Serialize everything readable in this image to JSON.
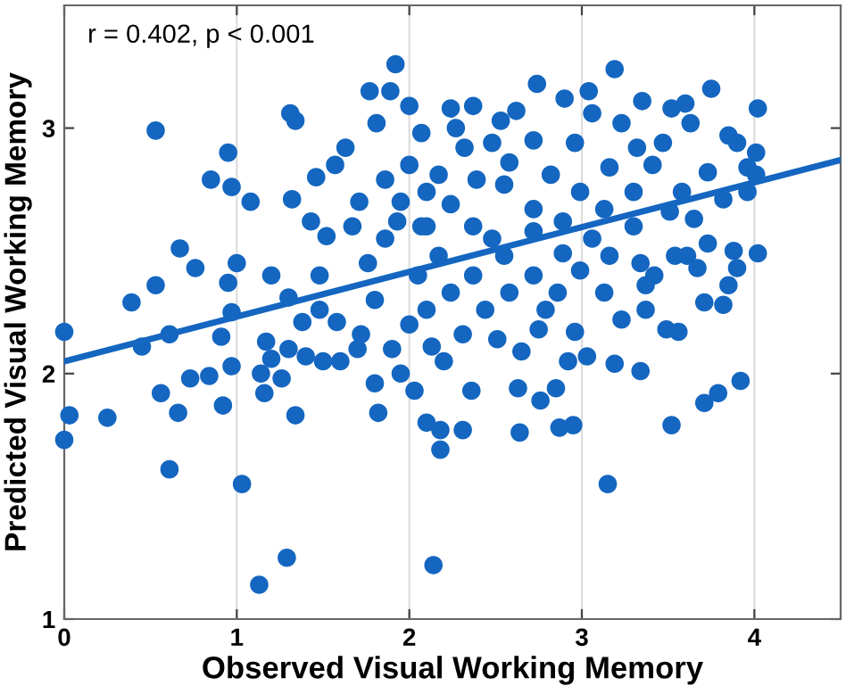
{
  "chart_data": {
    "type": "scatter",
    "xlabel": "Observed Visual Working Memory",
    "ylabel": "Predicted Visual Working Memory",
    "annotations": [
      "r = 0.402, p < 0.001"
    ],
    "xlim": [
      0,
      4.5
    ],
    "ylim": [
      1,
      3.5
    ],
    "xticks": [
      0,
      1,
      2,
      3,
      4
    ],
    "yticks": [
      1,
      2,
      3
    ],
    "grid": "x",
    "legend": false,
    "series": [
      {
        "marker": "circle",
        "color": "#1466c0",
        "x": [
          0,
          0.03,
          0.25,
          0.56,
          0.61,
          0.66,
          0.73,
          0.84,
          0.92,
          0.97,
          1.03,
          1.29,
          1.13,
          1.34,
          1.16,
          1.14,
          1.26,
          1.82,
          1.8,
          2.03,
          2.1,
          2.14,
          2.18,
          2.18,
          2.31,
          2.64,
          2.87,
          2.95,
          3.15,
          3.52,
          3.71,
          3.79,
          3.92,
          3.34,
          3.19,
          2.76,
          2.85,
          2.63,
          2.36,
          3.03,
          2.92,
          0.53,
          0.95,
          0.85,
          0.97,
          1.08,
          1.31,
          1.34,
          0.67,
          0.76,
          0.53,
          0.39,
          1.0,
          0.95,
          1.2,
          0,
          0.97,
          0.91,
          0.61,
          0.45,
          1.32,
          1.43,
          1.46,
          1.57,
          1.63,
          1.77,
          1.89,
          1.92,
          1.81,
          2.0,
          1.71,
          1.52,
          1.48,
          1.3,
          1.48,
          1.67,
          1.76,
          1.86,
          1.93,
          1.38,
          1.58,
          1.72,
          1.17,
          1.86,
          3.19,
          2.74,
          3.04,
          3.75,
          4.02,
          2.9,
          3.35,
          2.24,
          2.37,
          3.6,
          3.52,
          2.62,
          3.06,
          2.27,
          2.53,
          3.23,
          3.63,
          3.85,
          2.07,
          2.32,
          2.48,
          2.72,
          2.96,
          3.32,
          3.47,
          3.9,
          4.01,
          2.58,
          2.17,
          2.39,
          2.82,
          3.16,
          3.41,
          3.73,
          3.96,
          4.01,
          2.1,
          2.55,
          2.99,
          3.3,
          3.58,
          3.82,
          3.96,
          2.24,
          2.72,
          3.13,
          3.51,
          2.07,
          2.37,
          2.89,
          3.3,
          3.65,
          2.48,
          2.72,
          3.06,
          3.73,
          4.02,
          3.88,
          3.54,
          3.61,
          3.34,
          2.17,
          2.55,
          2.89,
          3.16,
          2.37,
          2.72,
          2.99,
          3.42,
          3.67,
          3.9,
          3.85,
          3.82,
          3.71,
          3.37,
          3.37,
          3.23,
          3.49,
          3.56,
          2.24,
          2.58,
          2.86,
          3.13,
          2.1,
          2.44,
          2.79,
          2.31,
          2.75,
          2.96,
          2.51,
          2.13,
          2.65,
          2.0,
          1.9,
          2.05,
          1.8,
          2.2,
          1.95,
          1.6,
          1.7,
          2.1,
          1.95,
          2.0,
          1.5,
          1.4,
          1.2,
          1.3
        ],
        "values": [
          1.73,
          1.83,
          1.82,
          1.92,
          1.61,
          1.84,
          1.98,
          1.99,
          1.87,
          2.03,
          1.55,
          1.25,
          1.14,
          1.83,
          1.92,
          2.0,
          1.98,
          1.84,
          1.96,
          1.93,
          1.8,
          1.22,
          1.69,
          1.77,
          1.77,
          1.76,
          1.78,
          1.79,
          1.55,
          1.79,
          1.88,
          1.92,
          1.97,
          2.01,
          2.04,
          1.89,
          1.94,
          1.94,
          1.93,
          2.07,
          2.05,
          2.99,
          2.9,
          2.79,
          2.76,
          2.7,
          3.06,
          3.03,
          2.51,
          2.43,
          2.36,
          2.29,
          2.45,
          2.37,
          2.4,
          2.17,
          2.25,
          2.15,
          2.16,
          2.11,
          2.71,
          2.62,
          2.8,
          2.85,
          2.92,
          3.15,
          3.15,
          3.26,
          3.02,
          3.09,
          2.7,
          2.56,
          2.4,
          2.31,
          2.26,
          2.6,
          2.45,
          2.55,
          2.62,
          2.21,
          2.21,
          2.16,
          2.13,
          2.79,
          3.24,
          3.18,
          3.15,
          3.16,
          3.08,
          3.12,
          3.11,
          3.08,
          3.09,
          3.1,
          3.08,
          3.07,
          3.06,
          3.0,
          3.03,
          3.02,
          3.02,
          2.97,
          2.98,
          2.92,
          2.94,
          2.95,
          2.94,
          2.92,
          2.94,
          2.94,
          2.9,
          2.86,
          2.81,
          2.79,
          2.81,
          2.84,
          2.85,
          2.82,
          2.84,
          2.81,
          2.74,
          2.77,
          2.74,
          2.74,
          2.74,
          2.71,
          2.74,
          2.69,
          2.67,
          2.67,
          2.66,
          2.6,
          2.6,
          2.62,
          2.6,
          2.63,
          2.55,
          2.58,
          2.55,
          2.53,
          2.49,
          2.5,
          2.48,
          2.48,
          2.45,
          2.48,
          2.48,
          2.49,
          2.48,
          2.4,
          2.4,
          2.42,
          2.4,
          2.43,
          2.43,
          2.36,
          2.28,
          2.29,
          2.36,
          2.26,
          2.22,
          2.18,
          2.17,
          2.33,
          2.33,
          2.33,
          2.33,
          2.26,
          2.26,
          2.26,
          2.16,
          2.18,
          2.17,
          2.14,
          2.11,
          2.09,
          2.2,
          2.1,
          2.4,
          2.3,
          2.05,
          2.0,
          2.05,
          2.1,
          2.6,
          2.7,
          2.85,
          2.05,
          2.07,
          2.06,
          2.1
        ]
      },
      {
        "type": "line",
        "marker": "none",
        "color": "#1466c0",
        "x": [
          0,
          4.5
        ],
        "values": [
          2.05,
          2.87
        ]
      }
    ]
  }
}
